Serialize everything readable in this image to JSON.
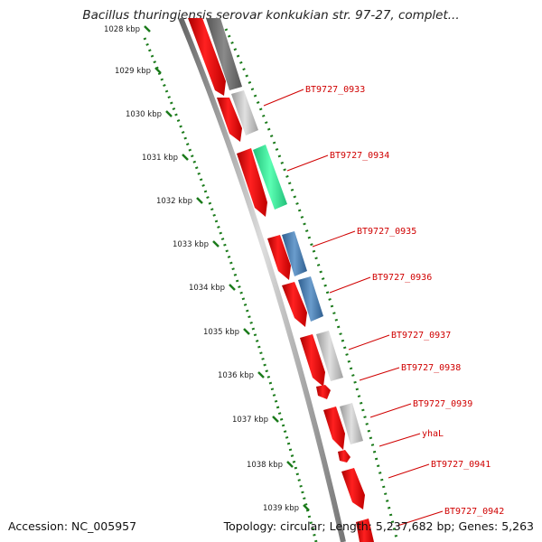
{
  "title": "Bacillus thuringiensis serovar konkukian str. 97-27, complet...",
  "accession": "Accession: NC_005957",
  "topology": "Topology: circular; Length: 5,237,682 bp; Genes: 5,263",
  "colors": {
    "cds": "#ff0000",
    "backbone": "#888888",
    "gc_ticks": "#1a7a1a",
    "label": "#d00000"
  },
  "scale_ticks": [
    "1028 kbp",
    "1029 kbp",
    "1030 kbp",
    "1031 kbp",
    "1032 kbp",
    "1033 kbp",
    "1034 kbp",
    "1035 kbp",
    "1036 kbp",
    "1037 kbp",
    "1038 kbp",
    "1039 kbp"
  ],
  "gene_labels": [
    "BT9727_0933",
    "BT9727_0934",
    "BT9727_0935",
    "BT9727_0936",
    "BT9727_0937",
    "BT9727_0938",
    "BT9727_0939",
    "yhaL",
    "BT9727_0941",
    "BT9727_0942"
  ]
}
